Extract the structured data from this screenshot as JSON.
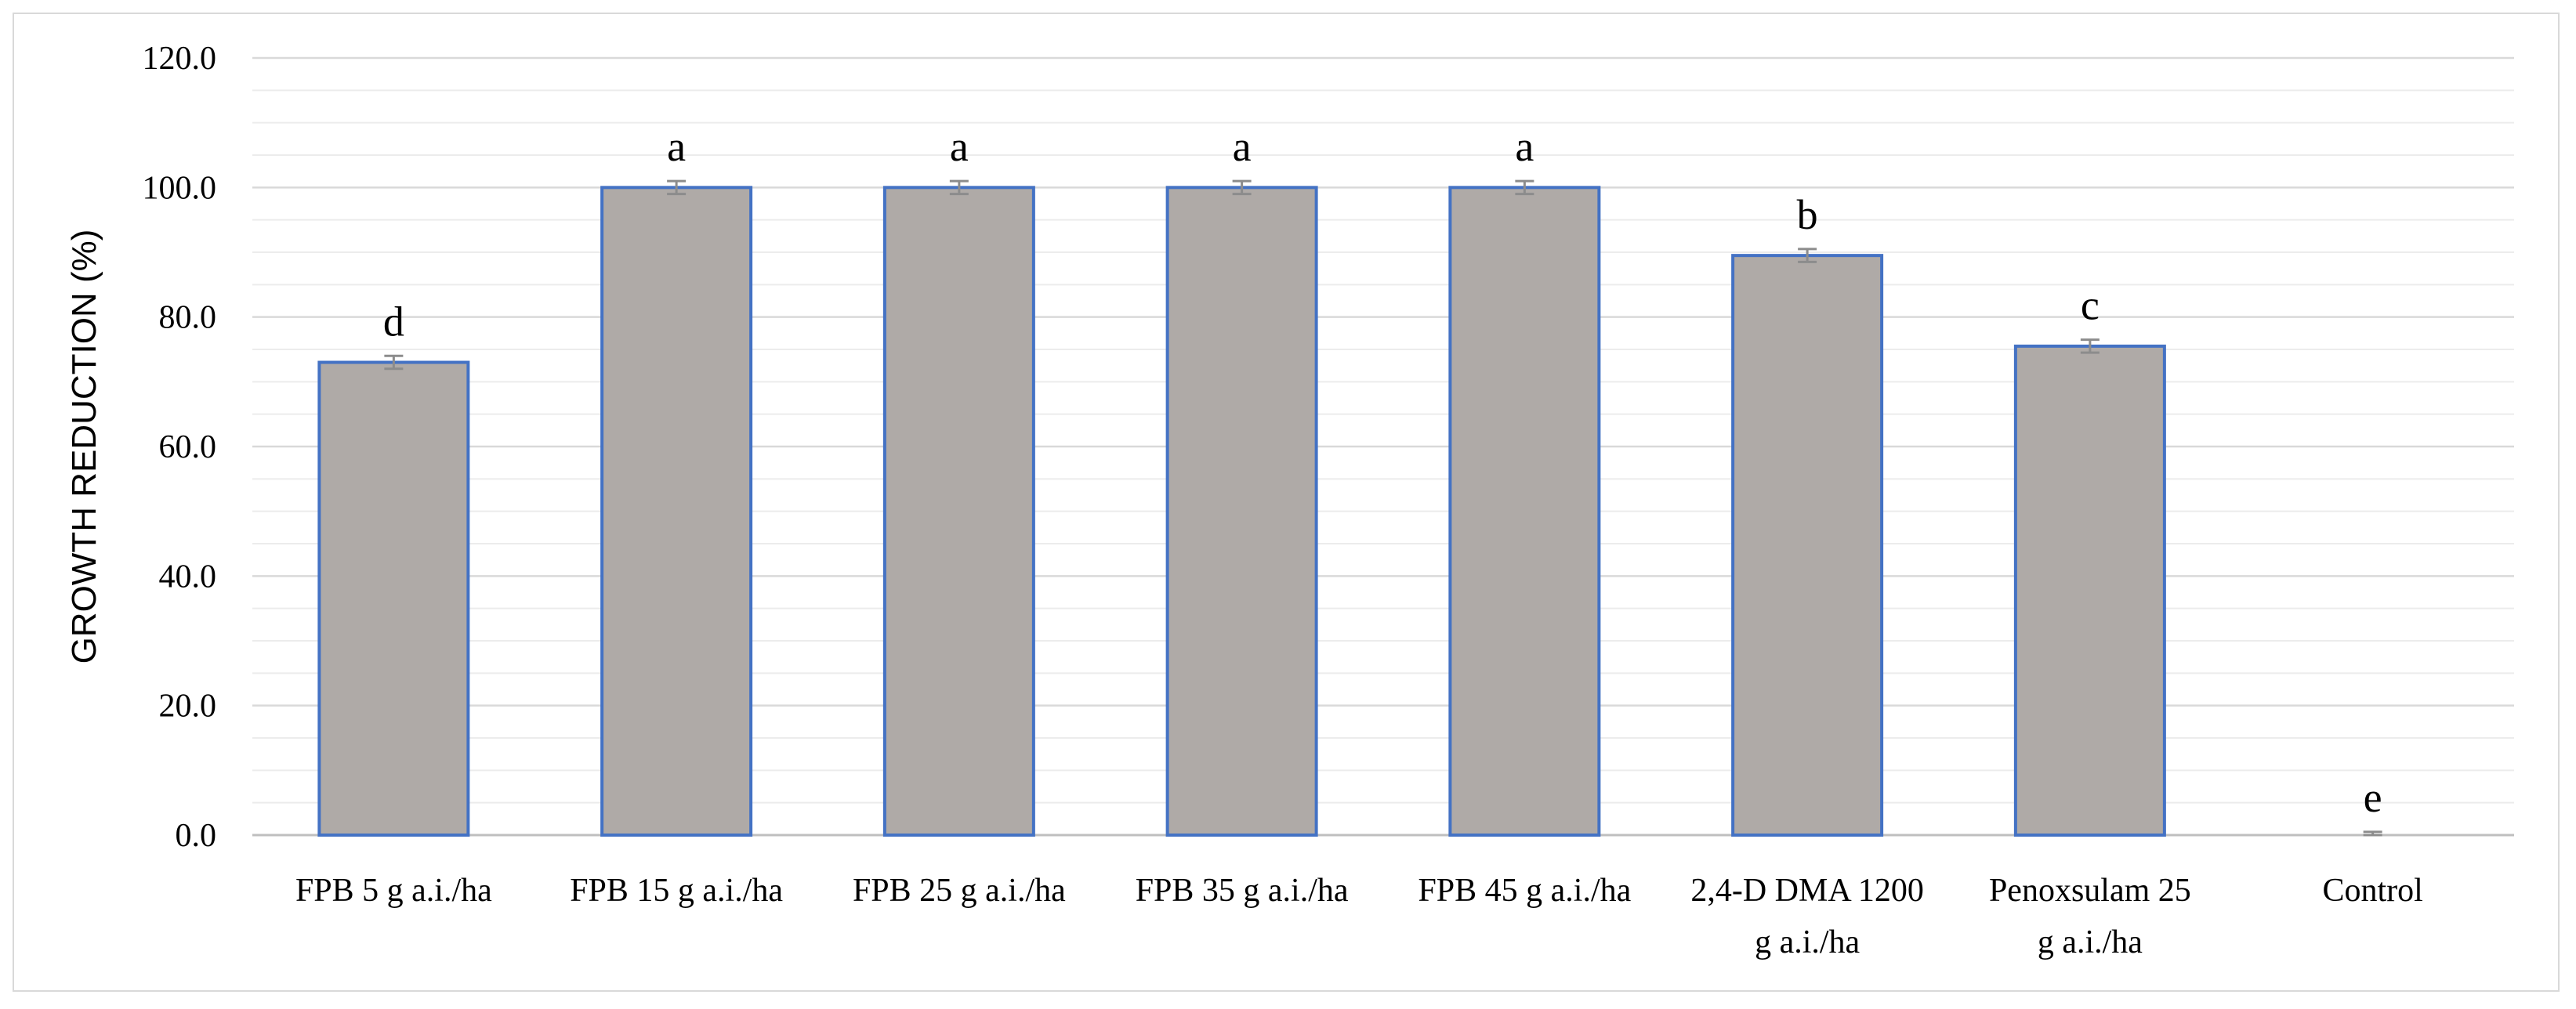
{
  "chart_data": {
    "type": "bar",
    "ylabel": "GROWTH REDUCTION (%)",
    "xlabel": "",
    "title": "",
    "ylim": [
      0,
      120
    ],
    "major_ticks": [
      "0.0",
      "20.0",
      "40.0",
      "60.0",
      "80.0",
      "100.0",
      "120.0"
    ],
    "minor_grid_step": 5,
    "grid": true,
    "categories": [
      [
        "FPB 5 g a.i./ha"
      ],
      [
        "FPB 15 g a.i./ha"
      ],
      [
        "FPB 25 g a.i./ha"
      ],
      [
        "FPB 35 g a.i./ha"
      ],
      [
        "FPB 45 g a.i./ha"
      ],
      [
        "2,4-D DMA 1200",
        "g a.i./ha"
      ],
      [
        "Penoxsulam 25",
        "g a.i./ha"
      ],
      [
        "Control"
      ]
    ],
    "values": [
      73.0,
      100.0,
      100.0,
      100.0,
      100.0,
      89.5,
      75.5,
      0.0
    ],
    "errors": [
      1.0,
      1.0,
      1.0,
      1.0,
      1.0,
      1.0,
      1.0,
      0.5
    ],
    "significance_letters": [
      "d",
      "a",
      "a",
      "a",
      "a",
      "b",
      "c",
      "e"
    ],
    "colors": {
      "bar_fill": "#afaaa7",
      "bar_edge": "#4472c4",
      "error_bar": "#8c8c8c",
      "major_grid": "#d9d9d9",
      "minor_grid": "#ececec",
      "axis": "#bfbfbf"
    }
  }
}
